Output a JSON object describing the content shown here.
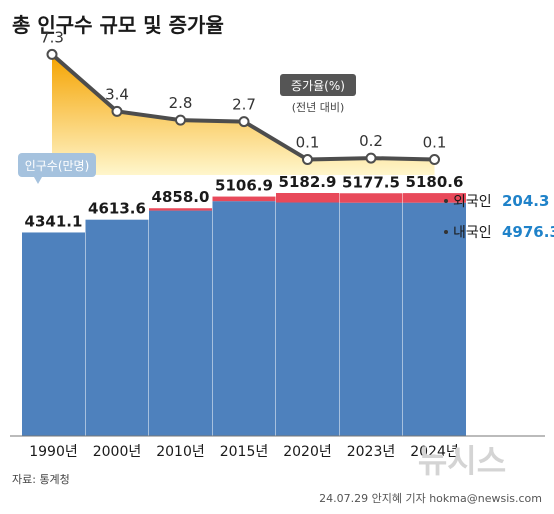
{
  "chart_data": {
    "type": "bar",
    "title": "총 인구수 규모 및 증가율",
    "categories": [
      "1990년",
      "2000년",
      "2010년",
      "2015년",
      "2020년",
      "2023년",
      "2024년"
    ],
    "series": [
      {
        "name": "내국인",
        "values": [
          4341.1,
          4613.6,
          4808.0,
          5008.9,
          4980.0,
          4976.0,
          4976.3
        ]
      },
      {
        "name": "외국인",
        "values": [
          0,
          0,
          50.0,
          98.0,
          202.9,
          201.5,
          204.3
        ]
      }
    ],
    "totals": [
      "4341.1",
      "4613.6",
      "4858.0",
      "5106.9",
      "5182.9",
      "5177.5",
      "5180.6"
    ],
    "growth_rate": {
      "name": "증가율(%)",
      "sub": "(전년 대비)",
      "values": [
        7.3,
        3.4,
        2.8,
        2.7,
        0.1,
        0.2,
        0.1
      ],
      "labels": [
        "7.3",
        "3.4",
        "2.8",
        "2.7",
        "0.1",
        "0.2",
        "0.1"
      ]
    },
    "unit_label": "인구수(만명)",
    "legend": {
      "foreign_label": "외국인",
      "foreign_value": "204.3",
      "domestic_label": "내국인",
      "domestic_value": "4976.3"
    },
    "colors": {
      "domestic": "#4e81bd",
      "foreign": "#e8495a",
      "line": "#4d4d4d",
      "area_top": "#f5a300",
      "area_bottom": "#fff6cc",
      "badge": "#555555",
      "unit_badge": "#a5c2de"
    }
  },
  "source": "자료: 통계청",
  "credit": "24.07.29 안지혜 기자 hokma@newsis.com",
  "watermark": "뉴시스"
}
